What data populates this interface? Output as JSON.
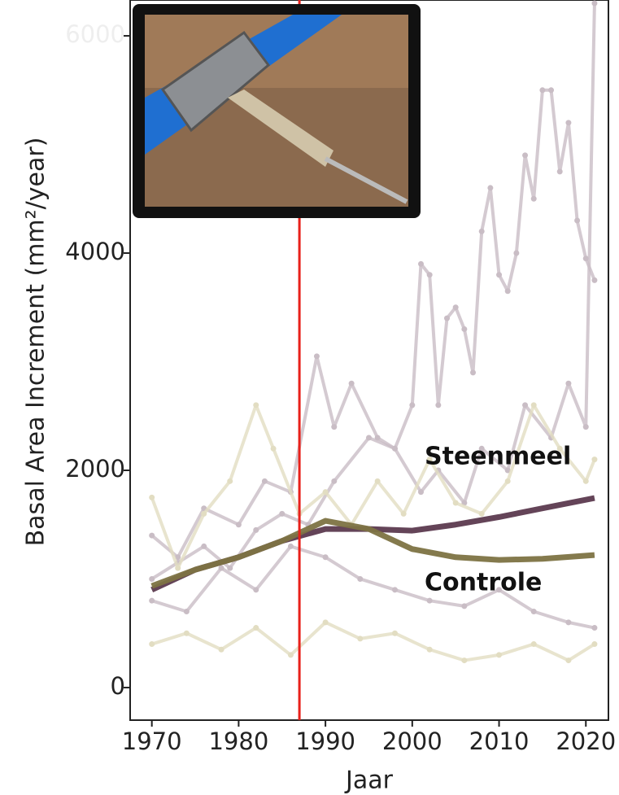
{
  "chart_data": {
    "type": "line",
    "y_label": "Basal Area Increment (mm²/year)",
    "x_label": "Jaar",
    "xlim": [
      1967.5,
      2022.6
    ],
    "ylim": [
      -300,
      6330
    ],
    "xticks": [
      1970,
      1980,
      1990,
      2000,
      2010,
      2020
    ],
    "yticks": [
      0,
      2000,
      4000,
      6000
    ],
    "vline": {
      "value": 1987,
      "color": "#e8201a"
    },
    "series": [
      {
        "color": "#c9bdc5",
        "x": [
          1970,
          1973,
          1976,
          1979,
          1982,
          1985,
          1988,
          1991,
          1995,
          1998,
          2000,
          2001,
          2002,
          2003,
          2004,
          2005,
          2006,
          2007,
          2008,
          2009,
          2010,
          2011,
          2012,
          2013,
          2014,
          2015,
          2016,
          2017,
          2018,
          2019,
          2020,
          2021
        ],
        "values": [
          1000,
          1150,
          1300,
          1100,
          1450,
          1600,
          1500,
          1900,
          2300,
          2200,
          2600,
          3900,
          3800,
          2600,
          3400,
          3500,
          3300,
          2900,
          4200,
          4600,
          3800,
          3650,
          4000,
          4900,
          4500,
          5500,
          5500,
          4750,
          5200,
          4300,
          3950,
          3750
        ]
      },
      {
        "color": "#c9bdc5",
        "x": [
          1970,
          1973,
          1976,
          1980,
          1983,
          1986,
          1989,
          1991,
          1993,
          1996,
          1998,
          2001,
          2003,
          2006,
          2008,
          2011,
          2013,
          2016,
          2018,
          2020,
          2021
        ],
        "values": [
          1400,
          1200,
          1650,
          1500,
          1900,
          1800,
          3050,
          2400,
          2800,
          2300,
          2200,
          1800,
          2000,
          1700,
          2200,
          2000,
          2600,
          2300,
          2800,
          2400,
          6300
        ]
      },
      {
        "color": "#e2ddc2",
        "x": [
          1970,
          1973,
          1976,
          1979,
          1982,
          1984,
          1987,
          1990,
          1993,
          1996,
          1999,
          2002,
          2005,
          2008,
          2011,
          2014,
          2017,
          2020,
          2021
        ],
        "values": [
          1750,
          1100,
          1600,
          1900,
          2600,
          2200,
          1600,
          1800,
          1500,
          1900,
          1600,
          2100,
          1700,
          1600,
          1900,
          2600,
          2200,
          1900,
          2100
        ]
      },
      {
        "color": "#e2ddc2",
        "x": [
          1970,
          1974,
          1978,
          1982,
          1986,
          1990,
          1994,
          1998,
          2002,
          2006,
          2010,
          2014,
          2018,
          2021
        ],
        "values": [
          400,
          500,
          350,
          550,
          300,
          600,
          450,
          500,
          350,
          250,
          300,
          400,
          250,
          400
        ]
      },
      {
        "color": "#c9bdc5",
        "x": [
          1970,
          1974,
          1978,
          1982,
          1986,
          1990,
          1994,
          1998,
          2002,
          2006,
          2010,
          2014,
          2018,
          2021
        ],
        "values": [
          800,
          700,
          1100,
          900,
          1300,
          1200,
          1000,
          900,
          800,
          750,
          900,
          700,
          600,
          550
        ]
      },
      {
        "name": "Steenmeel",
        "color": "#5c3a4f",
        "trend": true,
        "x": [
          1970,
          1975,
          1980,
          1985,
          1990,
          1995,
          2000,
          2005,
          2010,
          2015,
          2021
        ],
        "values": [
          900,
          1085,
          1200,
          1350,
          1460,
          1460,
          1445,
          1500,
          1570,
          1650,
          1745
        ]
      },
      {
        "name": "Controle",
        "color": "#7d7343",
        "trend": true,
        "x": [
          1970,
          1975,
          1980,
          1985,
          1990,
          1995,
          2000,
          2005,
          2010,
          2015,
          2021
        ],
        "values": [
          935,
          1085,
          1200,
          1350,
          1535,
          1460,
          1275,
          1200,
          1175,
          1185,
          1220
        ]
      }
    ]
  }
}
